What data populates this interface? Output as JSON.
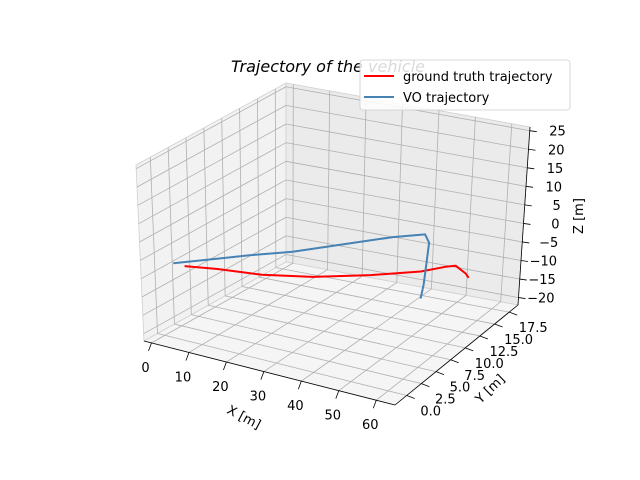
{
  "chart_data": {
    "type": "line",
    "projection": "3d",
    "title": "Trajectory of the vehicle",
    "xlabel": "X [m]",
    "ylabel": "Y [m]",
    "zlabel": "Z [m]",
    "x_ticks": [
      "0",
      "10",
      "20",
      "30",
      "40",
      "50",
      "60"
    ],
    "y_ticks": [
      "0.0",
      "2.5",
      "5.0",
      "7.5",
      "10.0",
      "12.5",
      "15.0",
      "17.5"
    ],
    "z_ticks": [
      "25",
      "20",
      "15",
      "10",
      "5",
      "0",
      "−5",
      "−10",
      "−15",
      "−20"
    ],
    "grid": true,
    "legend_position": "top-right",
    "series": [
      {
        "name": "ground truth trajectory",
        "color": "#ff0000",
        "points": [
          [
            8,
            -1,
            0
          ],
          [
            15,
            0,
            0
          ],
          [
            25,
            1,
            0
          ],
          [
            35,
            3,
            0
          ],
          [
            45,
            6,
            0
          ],
          [
            53,
            9,
            0
          ],
          [
            56,
            11,
            0
          ],
          [
            55,
            13,
            -2
          ],
          [
            52,
            16,
            -8
          ],
          [
            49,
            18,
            -12
          ]
        ]
      },
      {
        "name": "VO trajectory",
        "color": "#4682b4",
        "points": [
          [
            5,
            -1,
            0
          ],
          [
            10,
            0,
            1
          ],
          [
            15,
            1,
            2
          ],
          [
            20,
            2,
            3
          ],
          [
            28,
            4,
            4
          ],
          [
            36,
            7,
            5
          ],
          [
            44,
            10,
            6
          ],
          [
            49,
            12,
            6
          ],
          [
            50,
            12,
            4
          ],
          [
            49,
            12,
            -2
          ],
          [
            48,
            12,
            -8
          ],
          [
            47,
            12,
            -12
          ]
        ]
      }
    ]
  }
}
